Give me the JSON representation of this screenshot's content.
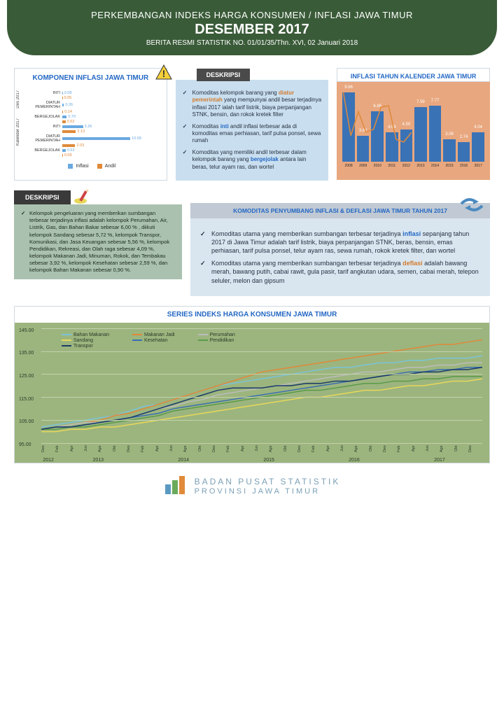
{
  "header": {
    "title_line1": "PERKEMBANGAN INDEKS HARGA KONSUMEN / INFLASI JAWA TIMUR",
    "title_line2": "DESEMBER 2017",
    "subtitle": "BERITA RESMI STATISTIK NO. 01/01/35/Thn. XVI, 02 Januari 2018"
  },
  "komponen": {
    "title": "KOMPONEN INFLASI JAWA TIMUR",
    "sections": [
      {
        "label": "Des 2017",
        "rows": [
          {
            "name": "INTI",
            "inflasi": 0.08,
            "andil": 0.05,
            "inflasi_color": "#6aa9e0",
            "andil_color": "#e08a3a"
          },
          {
            "name": "DIATUR PEMERINTAH",
            "inflasi": 0.26,
            "andil": 0.14,
            "inflasi_color": "#6aa9e0",
            "andil_color": "#e08a3a"
          },
          {
            "name": "BERGEJOLAK",
            "inflasi": 0.7,
            "andil": 0.52,
            "inflasi_color": "#6aa9e0",
            "andil_color": "#e08a3a"
          }
        ]
      },
      {
        "label": "Kalender 2017",
        "rows": [
          {
            "name": "INTI",
            "inflasi": 3.26,
            "andil": 2.13,
            "inflasi_color": "#6aa9e0",
            "andil_color": "#e08a3a"
          },
          {
            "name": "DIATUR PEMERINTAH",
            "inflasi": 10.69,
            "andil": 2.03,
            "inflasi_color": "#6aa9e0",
            "andil_color": "#e08a3a"
          },
          {
            "name": "BERGEJOLAK",
            "inflasi": 0.53,
            "andil": 0.09,
            "inflasi_color": "#6aa9e0",
            "andil_color": "#e08a3a"
          }
        ]
      }
    ],
    "max_value": 11,
    "legend": [
      {
        "label": "Inflasi",
        "color": "#6aa9e0"
      },
      {
        "label": "Andil",
        "color": "#e08a3a"
      }
    ]
  },
  "deskripsi_center": {
    "title": "DESKRIPSI",
    "items": [
      "Komoditas kelompok barang yang <span class='hl-orange'>diatur pemerintah</span> yang mempunyai andil besar terjadinya inflasi 2017 ialah tarif listrik, biaya perpanjangan STNK, bensin, dan rokok kretek filter",
      "Komoditas <span class='hl-blue'>inti</span> andil inflasi terbesar ada di komoditas emas perhiasan, tarif pulsa ponsel, sewa rumah",
      "Komoditas yang memiliki andil terbesar dalam kelompok barang yang <span class='hl-blue'>bergejolak</span> antara lain beras, telur ayam ras, dan wortel"
    ]
  },
  "inflasi_tahun": {
    "title": "INFLASI TAHUN KALENDER JAWA TIMUR",
    "years": [
      "2008",
      "2009",
      "2010",
      "2011",
      "2012",
      "2013",
      "2014",
      "2015",
      "2016",
      "2017"
    ],
    "values": [
      9.66,
      3.62,
      6.96,
      4.09,
      4.5,
      7.59,
      7.77,
      3.08,
      2.74,
      4.04
    ],
    "ymax": 10.5,
    "bar_color": "#3a72b6",
    "line_color": "#e08a3a",
    "bg_color": "#e8a77e"
  },
  "deskripsi_left": {
    "title": "DESKRIPSI",
    "text": "Kelompok pengeluaran yang memberikan sumbangan terbesar terjadinya inflasi adalah kelompok Perumahan, Air, Listrik, Gas, dan Bahan Bakar sebesar 6,00 % , diikuti kelompok Sandang sebesar 5,72 %, kelompok Transpor, Komunikasi, dan Jasa Keuangan sebesar 5,56 %, kelompok Pendidikan, Rekreasi, dan Olah raga sebesar 4,09 %, kelompok Makanan Jadi, Minuman, Rokok, dan Tembakau sebesar 3,92 %, kelompok Kesehatan sebesar 2,59 %, dan kelompok Bahan Makanan sebesar 0,90 %."
  },
  "komoditas": {
    "title": "KOMODITAS PENYUMBANG INFLASI & DEFLASI JAWA TIMUR TAHUN 2017",
    "items": [
      "Komoditas utama yang memberikan sumbangan terbesar terjadinya <span class='hl-blue'>inflasi</span> sepanjang tahun 2017 di Jawa Timur adalah tarif listrik, biaya perpanjangan STNK, beras, bensin, emas perhiasan, tarif pulsa ponsel, telur ayam ras, sewa rumah, rokok kretek filter, dan wortel",
      "Komoditas utama yang memberikan sumbangan terbesar terjadinya <span class='hl-orange'>deflasi</span> adalah bawang merah, bawang putih, cabai rawit, gula pasir, tarif angkutan udara, semen, cabai merah, telepon seluler, melon dan gipsum"
    ]
  },
  "series": {
    "title": "SERIES INDEKS HARGA KONSUMEN JAWA TIMUR",
    "ymin": 95,
    "ymax": 145,
    "ystep": 10,
    "bg_color": "#9cb57e",
    "x_months": [
      "Des",
      "Feb",
      "Apr",
      "Jun",
      "Ags",
      "Okt",
      "Des",
      "Feb",
      "Apr",
      "Jun",
      "Ags",
      "Okt",
      "Des",
      "Feb",
      "Apr",
      "Jun",
      "Ags",
      "Okt",
      "Des",
      "Feb",
      "Apr",
      "Jun",
      "Ags",
      "Okt",
      "Des",
      "Feb",
      "Apr",
      "Jun",
      "Ags",
      "Okt",
      "Des"
    ],
    "x_years": [
      {
        "label": "2012",
        "span": 1
      },
      {
        "label": "2013",
        "span": 6
      },
      {
        "label": "2014",
        "span": 6
      },
      {
        "label": "2015",
        "span": 6
      },
      {
        "label": "2016",
        "span": 6
      },
      {
        "label": "2017",
        "span": 6
      }
    ],
    "lines": [
      {
        "name": "Bahan Makanan",
        "color": "#7ac3d8",
        "data": [
          102,
          103,
          104,
          105,
          106,
          107,
          109,
          111,
          112,
          114,
          116,
          118,
          120,
          121,
          122,
          123,
          124,
          125,
          126,
          127,
          128,
          128,
          129,
          130,
          130,
          131,
          131,
          132,
          132,
          132,
          133
        ]
      },
      {
        "name": "Makanan Jadi",
        "color": "#e0883a",
        "data": [
          101,
          102,
          103,
          104,
          105,
          107,
          108,
          110,
          112,
          114,
          116,
          118,
          120,
          122,
          124,
          126,
          127,
          128,
          129,
          130,
          131,
          132,
          133,
          134,
          135,
          136,
          137,
          138,
          138,
          139,
          140
        ]
      },
      {
        "name": "Perumahan",
        "color": "#bcbcbc",
        "data": [
          101,
          102,
          103,
          104,
          104,
          105,
          106,
          108,
          110,
          111,
          113,
          114,
          116,
          117,
          118,
          119,
          120,
          121,
          122,
          123,
          124,
          125,
          126,
          126,
          127,
          128,
          128,
          129,
          129,
          130,
          130
        ]
      },
      {
        "name": "Sandang",
        "color": "#e8d85a",
        "data": [
          100,
          100,
          101,
          101,
          102,
          102,
          103,
          104,
          105,
          106,
          107,
          108,
          109,
          110,
          111,
          112,
          113,
          114,
          115,
          115,
          116,
          117,
          118,
          118,
          119,
          120,
          120,
          121,
          122,
          122,
          123
        ]
      },
      {
        "name": "Kesehatan",
        "color": "#3a6fb0",
        "data": [
          101,
          102,
          102,
          103,
          104,
          105,
          106,
          107,
          108,
          110,
          111,
          112,
          113,
          114,
          115,
          116,
          117,
          118,
          119,
          120,
          121,
          122,
          123,
          124,
          125,
          126,
          126,
          127,
          127,
          128,
          128
        ]
      },
      {
        "name": "Pendidikan",
        "color": "#5a9a4a",
        "data": [
          101,
          101,
          102,
          102,
          103,
          104,
          105,
          106,
          107,
          109,
          110,
          111,
          112,
          113,
          114,
          115,
          116,
          117,
          118,
          118,
          119,
          120,
          121,
          121,
          122,
          122,
          123,
          123,
          124,
          124,
          124
        ]
      },
      {
        "name": "Transpor",
        "color": "#1a3a6a",
        "data": [
          101,
          102,
          102,
          103,
          104,
          105,
          106,
          108,
          110,
          112,
          114,
          116,
          118,
          119,
          119,
          119,
          120,
          120,
          121,
          121,
          122,
          122,
          123,
          124,
          125,
          125,
          126,
          126,
          127,
          127,
          128
        ]
      }
    ]
  },
  "footer": {
    "org1": "BADAN PUSAT STATISTIK",
    "org2": "PROVINSI JAWA TIMUR"
  }
}
